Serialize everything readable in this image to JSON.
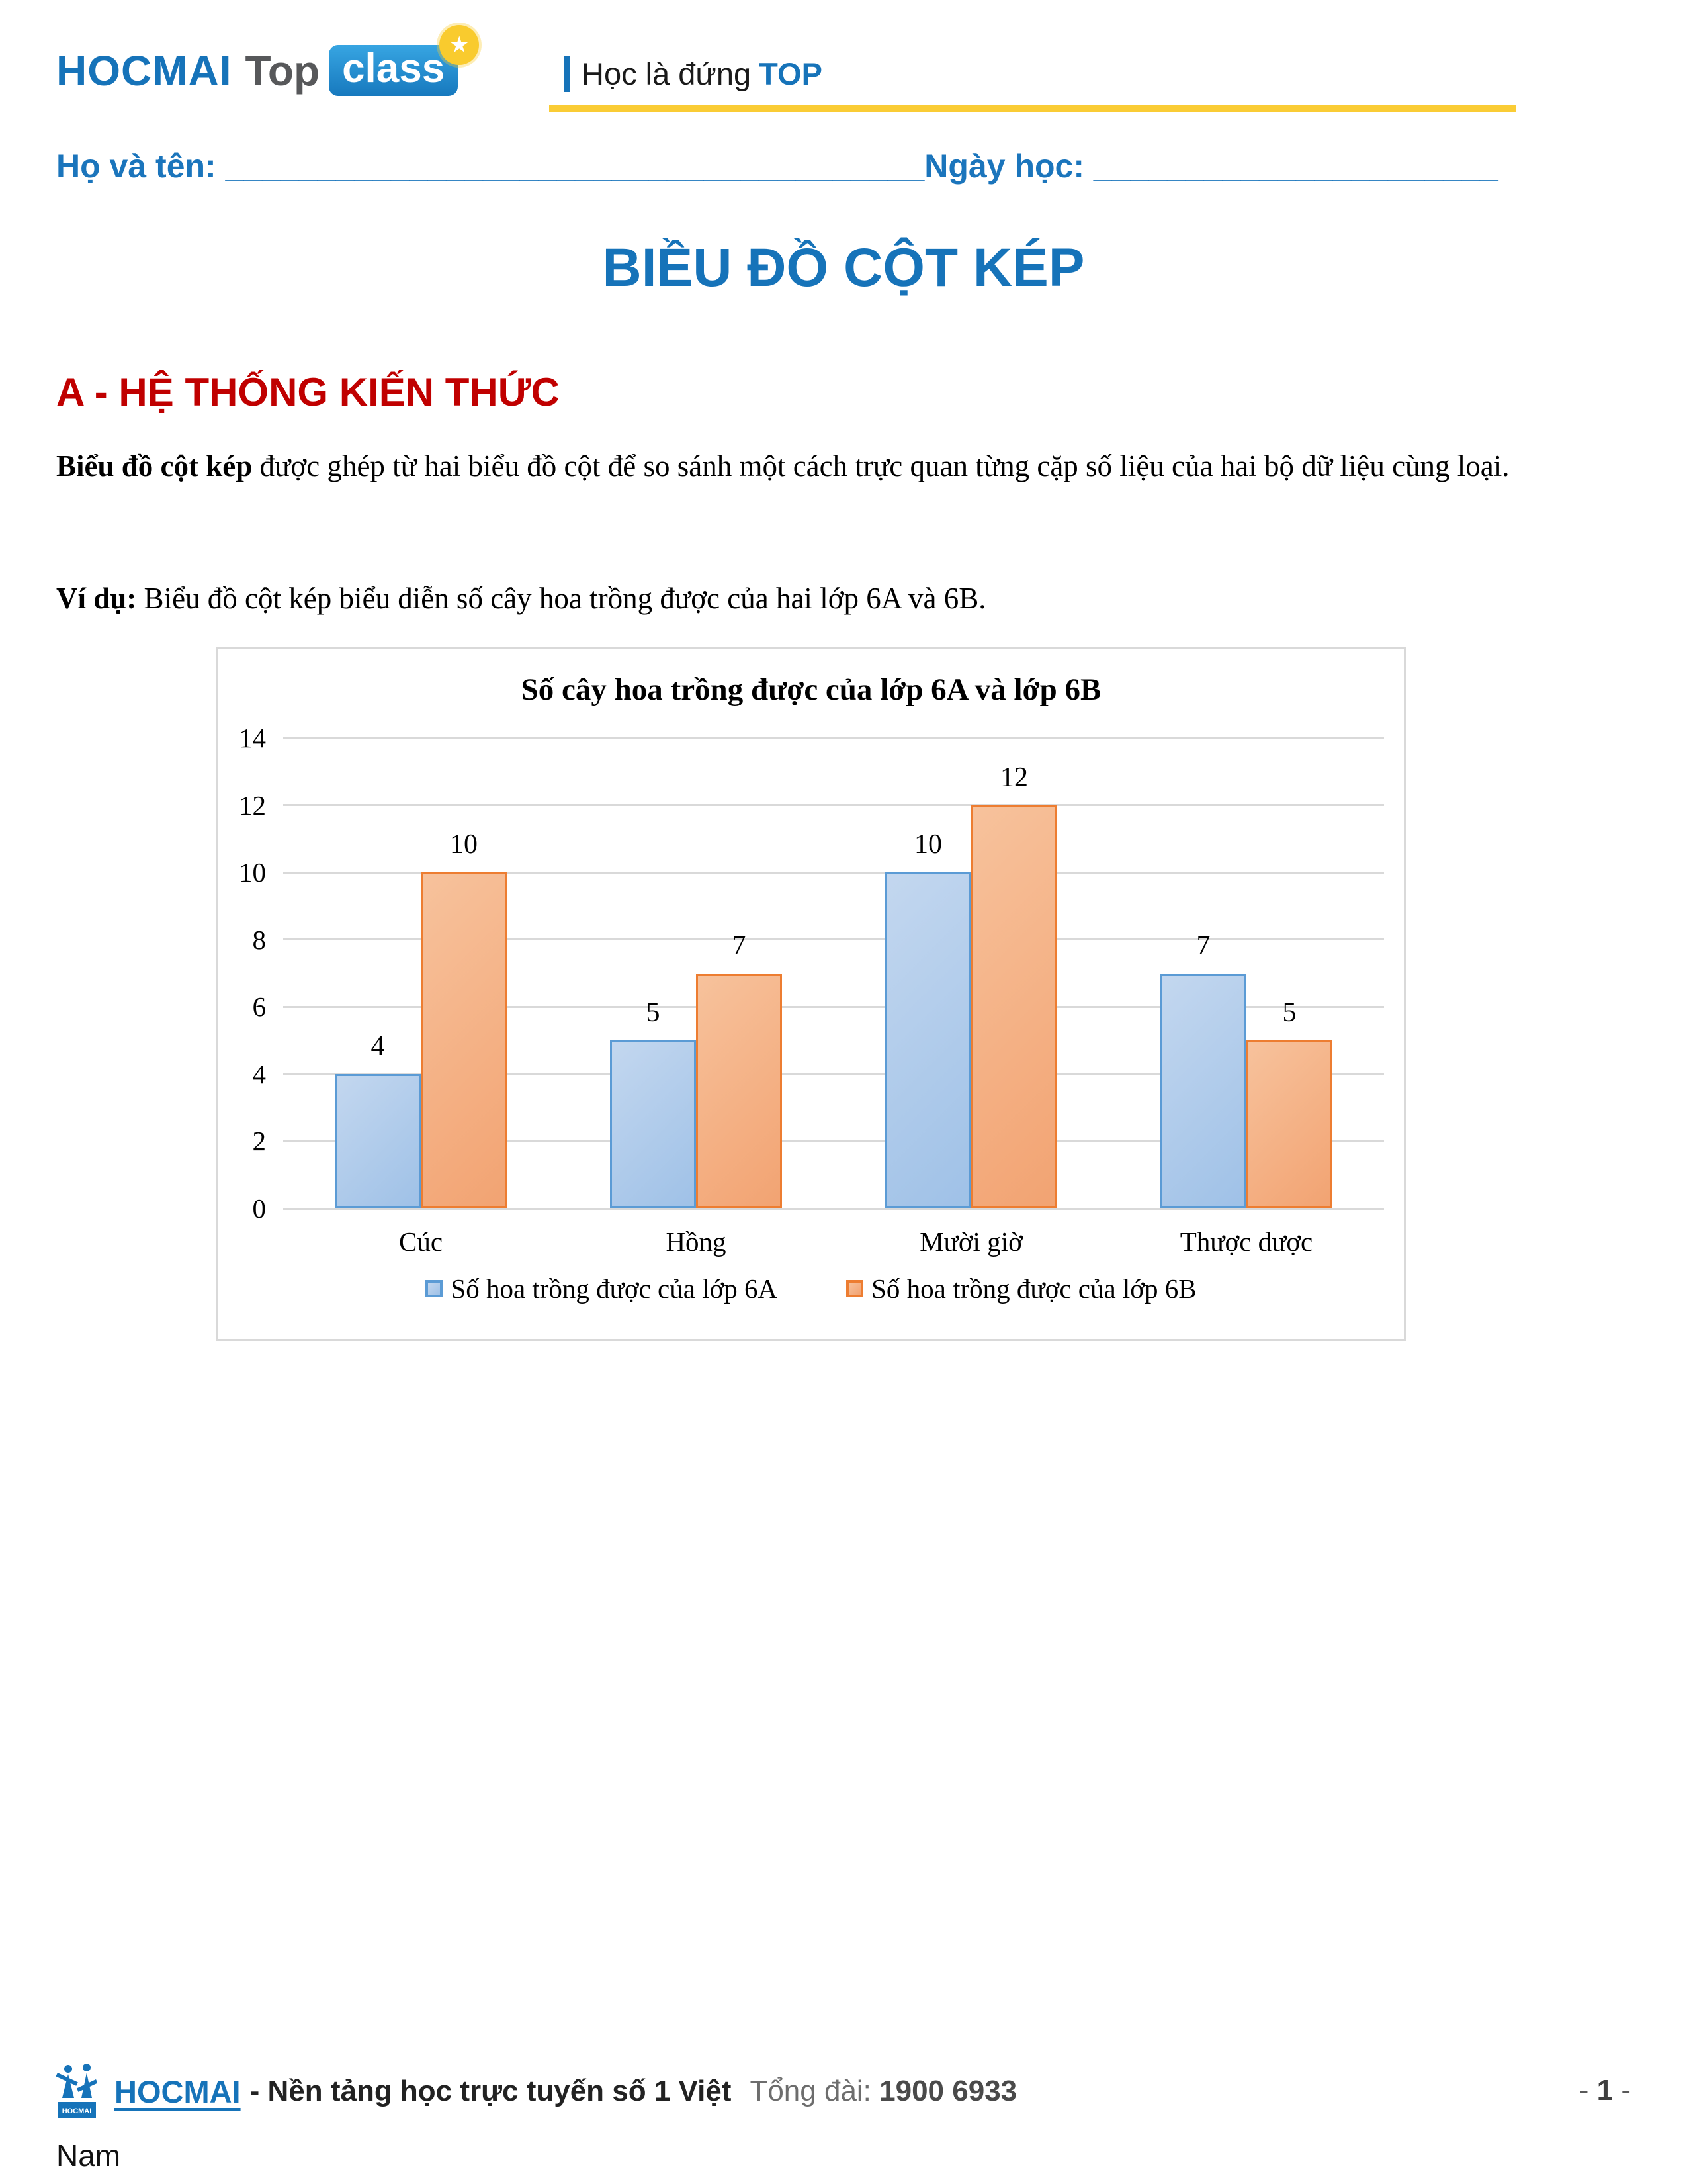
{
  "header": {
    "brand": {
      "hocmai": "HOCMAI",
      "top": "Top",
      "class": "class",
      "star_glyph": "★"
    },
    "tagline": {
      "prefix": "Học là đứng",
      "bold": "TOP"
    },
    "accent_blue": "#1673B9",
    "underline_yellow": "#FACC35"
  },
  "name_line": {
    "name_label": "Họ và tên: ",
    "name_blank": "______________________________________",
    "date_label": "Ngày học: ",
    "date_blank": "______________________"
  },
  "page_title": "BIỀU ĐỒ CỘT KÉP",
  "section_a": {
    "heading": "A - HỆ THỐNG KIẾN THỨC",
    "heading_color": "#C00000",
    "paragraph_bold": "Biểu đồ cột kép",
    "paragraph_rest": " được ghép từ hai biểu đồ cột để so sánh một cách trực quan từng cặp số liệu của hai bộ dữ liệu cùng loại.",
    "example_label": "Ví dụ:",
    "example_rest": " Biểu đồ cột kép biểu diễn số cây hoa trồng được của hai lớp 6A và 6B."
  },
  "chart_data": {
    "type": "bar",
    "title": "Số cây hoa trồng được của lớp 6A và lớp 6B",
    "categories": [
      "Cúc",
      "Hồng",
      "Mười giờ",
      "Thược dược"
    ],
    "series": [
      {
        "name": "Số hoa trồng được của lớp 6A",
        "values": [
          4,
          5,
          10,
          7
        ],
        "fill_top": "#C3D7EF",
        "fill_bottom": "#9FC1E7",
        "border": "#5B9BD5"
      },
      {
        "name": "Số hoa trồng được của lớp 6B",
        "values": [
          10,
          7,
          12,
          5
        ],
        "fill_top": "#F7C29C",
        "fill_bottom": "#F2A372",
        "border": "#ED7D31"
      }
    ],
    "ylim": [
      0,
      14
    ],
    "yticks": [
      0,
      2,
      4,
      6,
      8,
      10,
      12,
      14
    ],
    "grid": true,
    "data_labels": true,
    "legend_position": "bottom",
    "gridline_color": "#D9D9D9"
  },
  "footer": {
    "logo_text": "HOCMAI",
    "link": "HOCMAI",
    "desc": "- Nền tảng học trực tuyến số 1 Việt",
    "wrap_word": "Nam",
    "hotline_label": "Tổng đài: ",
    "hotline_number": "1900 6933",
    "page_prefix": "- ",
    "page_number": "1",
    "page_suffix": " -"
  }
}
